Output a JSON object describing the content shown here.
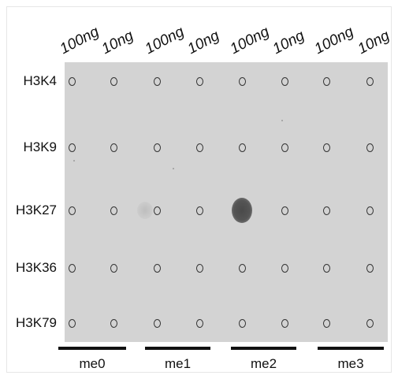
{
  "blot": {
    "column_labels": [
      "100ng",
      "10ng",
      "100ng",
      "10ng",
      "100ng",
      "10ng",
      "100ng",
      "10ng"
    ],
    "row_labels": [
      "H3K4",
      "H3K9",
      "H3K27",
      "H3K36",
      "H3K79"
    ],
    "group_labels": [
      "me0",
      "me1",
      "me2",
      "me3"
    ],
    "strong_signal": {
      "row": "H3K27",
      "group": "me2",
      "amount": "100ng"
    }
  }
}
